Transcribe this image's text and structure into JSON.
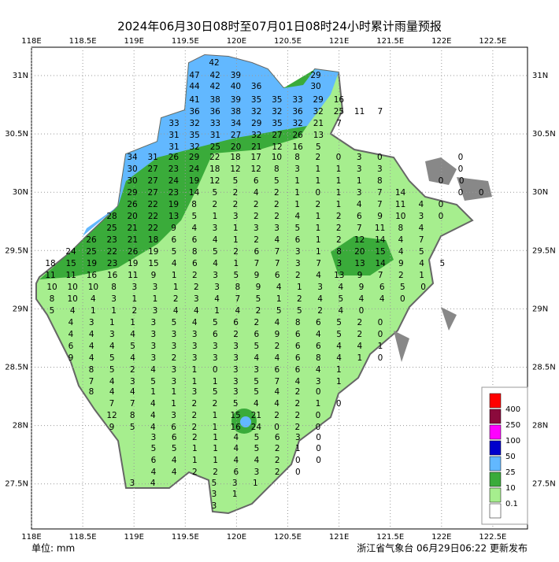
{
  "title": "2024年06月30日08时至07月01日08时24小时累计雨量预报",
  "lon_labels": [
    "118E",
    "118.5E",
    "119E",
    "119.5E",
    "120E",
    "120.5E",
    "121E",
    "121.5E",
    "122E",
    "122.5E"
  ],
  "lat_labels": [
    "31N",
    "30.5N",
    "30N",
    "29.5N",
    "29N",
    "28.5N",
    "28N",
    "27.5N"
  ],
  "legend": [
    {
      "color": "#ff0000"
    },
    {
      "color": "#8b0a3c",
      "label": "400"
    },
    {
      "color": "#ff00ff",
      "label": "250"
    },
    {
      "color": "#0000cc",
      "label": "100"
    },
    {
      "color": "#62b8ff",
      "label": "50"
    },
    {
      "color": "#3aab3a",
      "label": "25"
    },
    {
      "color": "#a6ee8e",
      "label": "10"
    },
    {
      "color": "#ffffff",
      "label": "0.1"
    }
  ],
  "unit": "单位: mm",
  "publisher": "浙江省气象台 06月29日06:22 更新发布",
  "stations": [
    [
      42
    ],
    [
      47,
      42,
      39
    ],
    [
      29
    ],
    [
      44,
      42,
      40,
      36
    ],
    [
      30
    ],
    [
      41,
      38,
      39,
      35,
      35,
      33,
      29,
      16
    ],
    [
      36,
      36,
      38,
      32,
      32,
      36,
      32,
      25,
      11,
      7
    ],
    [
      33,
      32,
      33,
      34,
      29,
      35,
      32,
      21,
      7
    ],
    [
      31,
      35,
      31,
      27,
      32,
      27,
      26,
      13
    ],
    [
      31,
      32,
      25,
      20,
      21,
      12,
      16,
      5
    ],
    [
      34,
      31,
      26,
      29,
      22,
      18,
      17,
      10,
      8,
      2,
      0,
      3,
      0
    ],
    [
      0
    ],
    [
      30,
      27,
      23,
      24,
      18,
      12,
      12,
      8,
      3,
      1,
      1,
      3,
      3
    ],
    [
      0
    ],
    [
      30,
      27,
      24,
      19,
      12,
      5,
      6,
      5,
      1,
      1,
      1,
      1,
      8
    ],
    [
      0,
      0
    ],
    [
      29,
      27,
      23,
      14,
      5,
      2,
      4,
      2,
      1,
      0,
      1,
      3,
      7,
      14
    ],
    [
      0,
      0
    ],
    [
      26,
      22,
      19,
      8,
      2,
      2,
      2,
      2,
      1,
      2,
      1,
      4,
      7,
      11,
      4
    ],
    [
      0
    ],
    [
      28,
      20,
      22,
      13,
      5,
      1,
      3,
      2,
      2,
      4,
      1,
      2,
      6,
      9,
      10,
      3
    ],
    [
      0
    ],
    [
      25,
      21,
      22,
      9,
      4,
      3,
      1,
      3,
      3,
      5,
      1,
      2,
      7,
      11,
      8,
      4
    ],
    [
      26,
      23,
      21,
      18,
      6,
      6,
      4,
      1,
      2,
      4,
      6,
      1,
      2,
      12,
      14,
      4,
      7
    ],
    [
      24,
      25,
      22,
      26,
      19,
      5,
      8,
      5,
      2,
      6,
      7,
      3,
      1,
      8,
      20,
      15,
      4,
      5
    ],
    [
      18,
      15,
      19,
      23,
      19,
      15,
      4,
      6,
      4,
      1,
      7,
      7,
      3,
      7,
      3,
      13,
      14,
      9,
      4,
      5
    ],
    [
      11,
      11,
      16,
      16,
      11,
      9,
      1,
      2,
      3,
      5,
      9,
      6,
      2,
      4,
      13,
      9,
      7,
      2,
      1
    ],
    [
      10,
      10,
      10,
      8,
      3,
      3,
      1,
      2,
      3,
      8,
      9,
      4,
      1,
      3,
      4,
      9,
      6,
      5,
      0
    ],
    [
      8,
      10,
      4,
      3,
      1,
      1,
      2,
      3,
      4,
      7,
      5,
      1,
      2,
      4,
      5,
      4,
      4,
      0
    ],
    [
      5,
      4,
      1,
      1,
      2,
      3,
      4,
      4,
      1,
      4,
      2,
      5,
      5,
      2,
      4,
      0
    ],
    [
      4,
      3,
      1,
      1,
      3,
      5,
      4,
      5,
      6,
      2,
      4,
      8,
      6,
      5,
      2,
      0
    ],
    [
      4,
      4,
      3,
      4,
      3,
      3,
      3,
      6,
      2,
      6,
      9,
      6,
      4,
      5,
      2,
      0
    ],
    [
      6,
      4,
      4,
      5,
      3,
      3,
      3,
      3,
      3,
      5,
      2,
      6,
      6,
      4,
      4,
      1
    ],
    [
      9,
      4,
      5,
      4,
      3,
      2,
      3,
      3,
      3,
      4,
      4,
      6,
      8,
      4,
      1,
      0
    ],
    [
      8,
      5,
      2,
      4,
      3,
      1,
      0,
      3,
      3,
      6,
      6,
      4,
      1
    ],
    [
      7,
      4,
      3,
      5,
      3,
      1,
      1,
      3,
      5,
      7,
      4,
      3,
      1
    ],
    [
      8,
      4,
      4,
      1,
      1,
      3,
      5,
      3,
      5,
      4,
      2,
      0
    ],
    [
      7,
      7,
      4,
      1,
      2,
      2,
      5,
      4,
      4,
      2,
      1,
      0
    ],
    [
      12,
      8,
      4,
      3,
      2,
      1,
      15,
      21,
      2,
      2,
      0
    ],
    [
      9,
      5,
      4,
      6,
      2,
      1,
      16,
      24,
      0,
      2,
      0
    ],
    [
      3,
      6,
      2,
      1,
      4,
      5,
      6,
      3,
      0
    ],
    [
      5,
      5,
      1,
      1,
      4,
      5,
      2,
      1,
      0
    ],
    [
      6,
      4,
      1,
      1,
      4,
      4,
      2,
      0,
      0
    ],
    [
      4,
      4,
      2,
      2,
      6,
      3,
      2,
      0
    ],
    [
      3,
      4
    ],
    [
      5,
      3,
      1
    ],
    [
      3,
      1
    ],
    [
      3
    ]
  ]
}
